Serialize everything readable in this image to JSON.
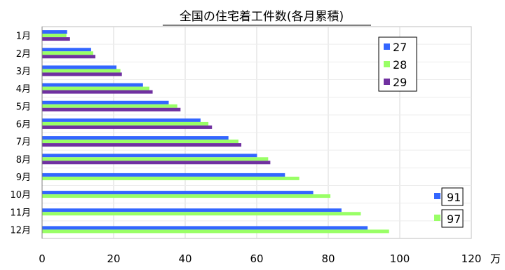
{
  "chart_data": {
    "type": "bar",
    "orientation": "horizontal",
    "title": "全国の住宅着工件数(各月累積)",
    "x_unit": "万",
    "xlim": [
      0,
      120
    ],
    "x_ticks": [
      0,
      20,
      40,
      60,
      80,
      100,
      120
    ],
    "grid": true,
    "legend_position": "top-right",
    "categories": [
      "1月",
      "2月",
      "3月",
      "4月",
      "5月",
      "6月",
      "7月",
      "8月",
      "9月",
      "10月",
      "11月",
      "12月"
    ],
    "series": [
      {
        "name": "27",
        "color": "#3366ff",
        "values": [
          7,
          13.7,
          20.8,
          28.2,
          35.4,
          44.3,
          52.1,
          60.1,
          67.9,
          75.8,
          83.7,
          91
        ]
      },
      {
        "name": "28",
        "color": "#99ff66",
        "values": [
          6.8,
          14.3,
          21.9,
          30,
          37.8,
          46.5,
          54.9,
          63.2,
          71.9,
          80.6,
          89.1,
          97
        ]
      },
      {
        "name": "29",
        "color": "#7030a0",
        "values": [
          7.8,
          14.9,
          22.3,
          30.9,
          38.7,
          47.5,
          55.7,
          63.8,
          null,
          null,
          null,
          null
        ]
      }
    ],
    "annotations": [
      {
        "text": "91",
        "series": "27"
      },
      {
        "text": "97",
        "series": "28"
      }
    ]
  }
}
